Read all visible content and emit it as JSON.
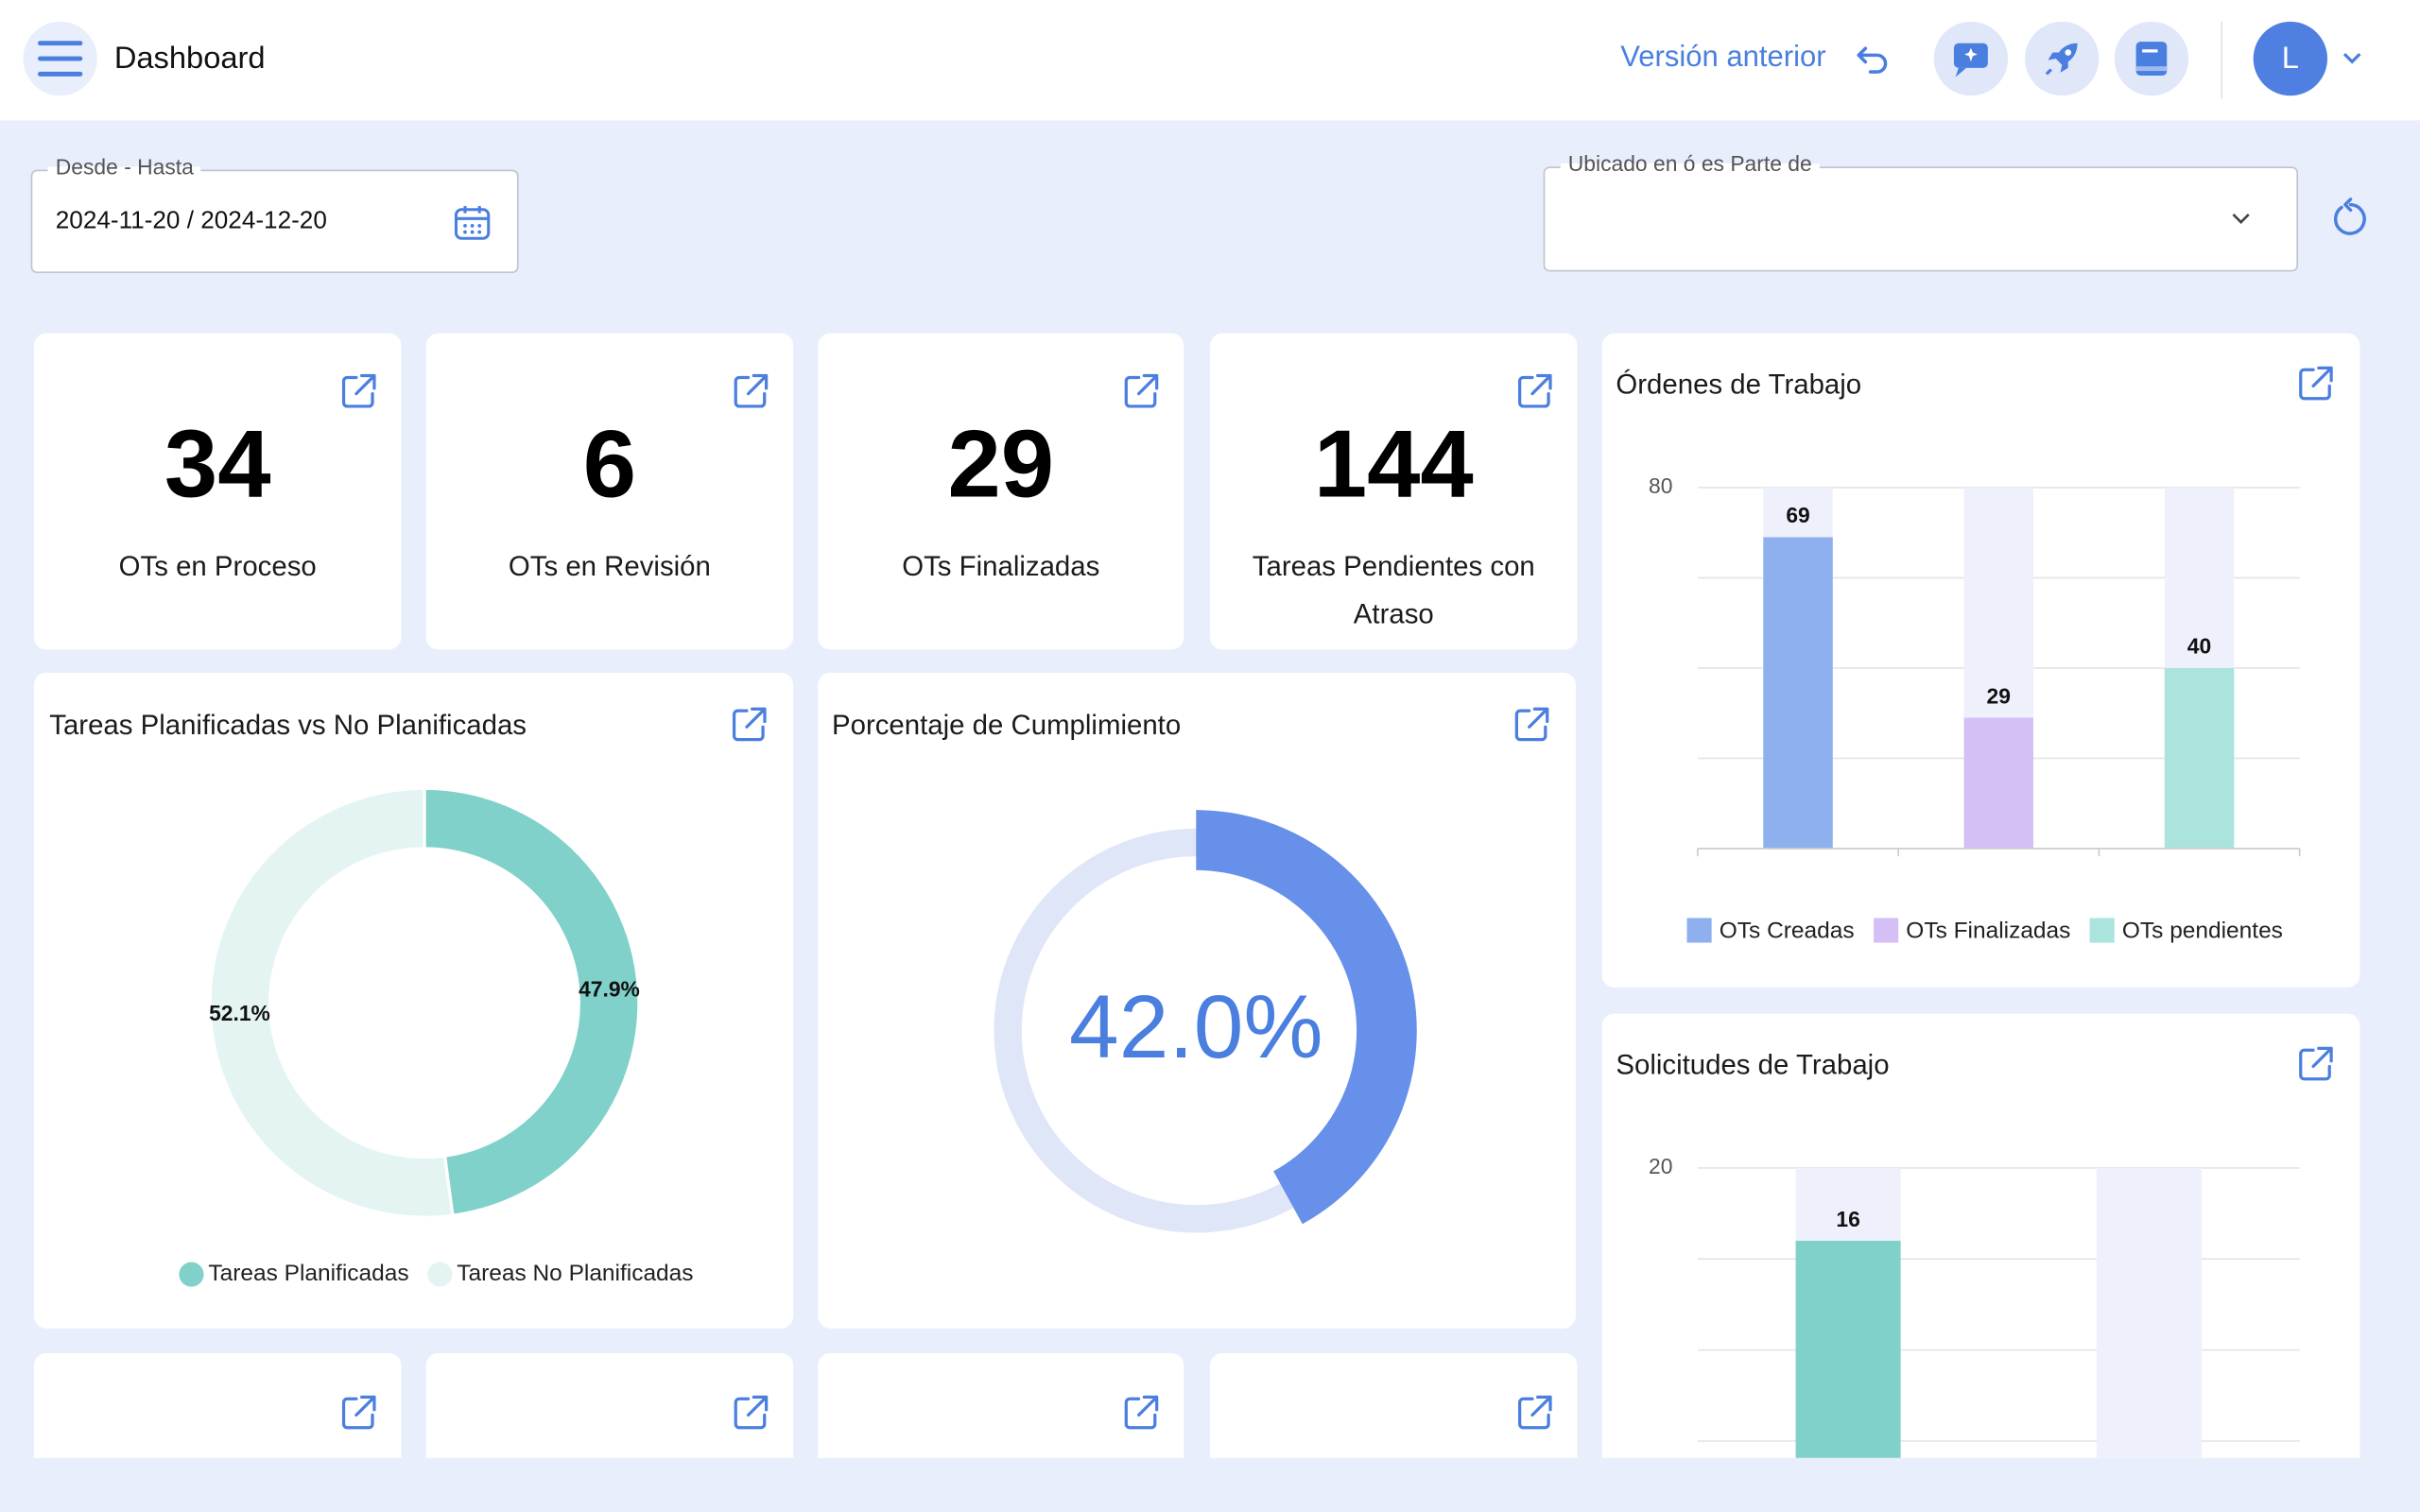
{
  "header": {
    "title": "Dashboard",
    "previous_version": "Versión anterior",
    "avatar": "L"
  },
  "filters": {
    "date_label": "Desde - Hasta",
    "date_value": "2024-11-20 / 2024-12-20",
    "location_label": "Ubicado en ó es Parte de"
  },
  "kpis": [
    {
      "value": 34,
      "label": "OTs en Proceso"
    },
    {
      "value": 6,
      "label": "OTs en Revisión"
    },
    {
      "value": 29,
      "label": "OTs Finalizadas"
    },
    {
      "value": 144,
      "label": "Tareas Pendientes con Atraso"
    }
  ],
  "planned_chart": {
    "type": "donut",
    "title": "Tareas Planificadas vs No Planificadas",
    "categories": [
      "Tareas Planificadas",
      "Tareas No Planificadas"
    ],
    "values": [
      47.9,
      52.1
    ],
    "value_labels": [
      "47.9%",
      "52.1%"
    ],
    "colors": [
      "#7fd1c9",
      "#e3f4f3"
    ]
  },
  "compliance_chart": {
    "type": "gauge",
    "title": "Porcentaje de Cumplimiento",
    "value": 42.0,
    "value_label": "42.0%",
    "color": "#6690ea",
    "track_color": "#dfe6f8"
  },
  "orders_chart": {
    "type": "bar",
    "title": "Órdenes de Trabajo",
    "categories": [
      "OTs Creadas",
      "OTs Finalizadas",
      "OTs pendientes"
    ],
    "values": [
      69,
      29,
      40
    ],
    "colors": [
      "#8fb0ef",
      "#d5bff7",
      "#abe3dd"
    ],
    "ylim": [
      0,
      80
    ],
    "yticks": [
      80
    ],
    "gridlines": [
      0,
      20,
      40,
      60,
      80
    ]
  },
  "requests_chart": {
    "type": "bar",
    "title": "Solicitudes de Trabajo",
    "categories": [
      null,
      null
    ],
    "values": [
      16,
      null
    ],
    "color": "#7fd1c9",
    "ylim": [
      0,
      20
    ],
    "yticks": [
      20
    ],
    "gridlines": [
      5,
      10,
      15,
      20
    ]
  }
}
